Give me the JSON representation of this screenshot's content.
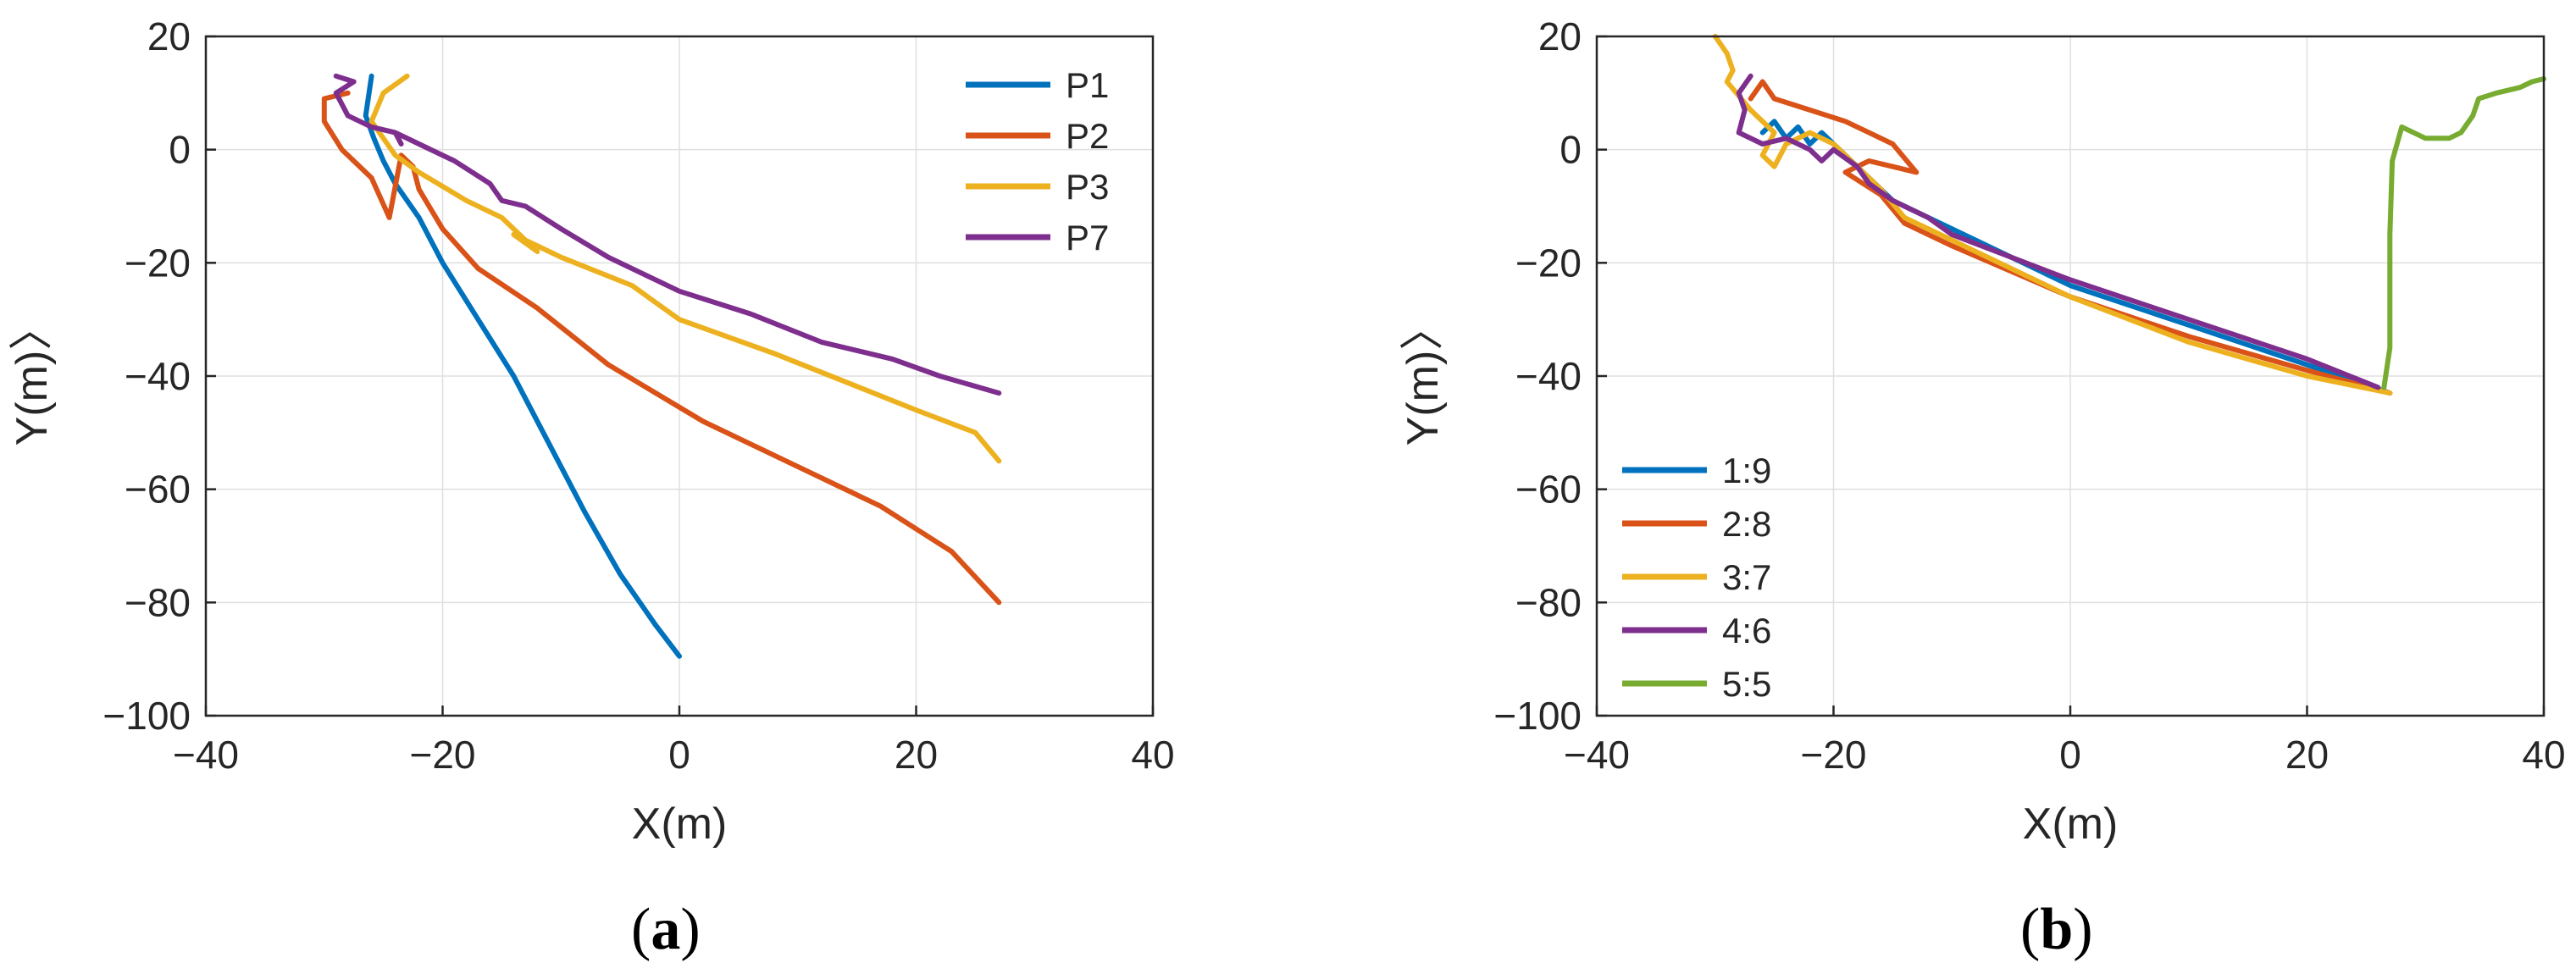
{
  "colors": {
    "blue": "#0072BD",
    "orange": "#D95319",
    "yellow": "#EDB120",
    "purple": "#7E2F8E",
    "green": "#77AC30"
  },
  "panels": {
    "a": {
      "open": "(",
      "letter": "a",
      "close": ")"
    },
    "b": {
      "open": "(",
      "letter": "b",
      "close": ")"
    }
  },
  "chart_data": [
    {
      "type": "line",
      "panel": "a",
      "xlabel": "X(m)",
      "ylabel": "Y(m)〉",
      "xlim": [
        -40,
        40
      ],
      "ylim": [
        -100,
        20
      ],
      "xticks": [
        -40,
        -20,
        0,
        20,
        40
      ],
      "yticks": [
        -100,
        -80,
        -60,
        -40,
        -20,
        0,
        20
      ],
      "xtick_labels": [
        "−40",
        "−20",
        "0",
        "20",
        "40"
      ],
      "ytick_labels": [
        "−100",
        "−80",
        "−60",
        "−40",
        "−20",
        "0",
        "20"
      ],
      "grid": true,
      "legend_position": "top-right",
      "series": [
        {
          "name": "P1",
          "color": "blue",
          "points": [
            [
              -26,
              13
            ],
            [
              -26.5,
              6
            ],
            [
              -25.8,
              2
            ],
            [
              -25,
              -2
            ],
            [
              -24,
              -6
            ],
            [
              -22,
              -12
            ],
            [
              -20,
              -20
            ],
            [
              -17,
              -30
            ],
            [
              -14,
              -40
            ],
            [
              -11,
              -52
            ],
            [
              -8,
              -64
            ],
            [
              -5,
              -75
            ],
            [
              -2,
              -84
            ],
            [
              0,
              -89.5
            ]
          ]
        },
        {
          "name": "P2",
          "color": "orange",
          "points": [
            [
              -28,
              10
            ],
            [
              -30,
              9
            ],
            [
              -30,
              5
            ],
            [
              -28.5,
              0
            ],
            [
              -26,
              -5
            ],
            [
              -24.5,
              -12
            ],
            [
              -23.5,
              -1
            ],
            [
              -22.5,
              -3
            ],
            [
              -22,
              -7
            ],
            [
              -20,
              -14
            ],
            [
              -17,
              -21
            ],
            [
              -12,
              -28
            ],
            [
              -6,
              -38
            ],
            [
              2,
              -48
            ],
            [
              10,
              -56
            ],
            [
              17,
              -63
            ],
            [
              23,
              -71
            ],
            [
              27,
              -80
            ]
          ]
        },
        {
          "name": "P3",
          "color": "yellow",
          "points": [
            [
              -23,
              13
            ],
            [
              -25,
              10
            ],
            [
              -26,
              5
            ],
            [
              -25,
              2
            ],
            [
              -24,
              -1
            ],
            [
              -22,
              -4
            ],
            [
              -18,
              -9
            ],
            [
              -15,
              -12
            ],
            [
              -12,
              -18
            ],
            [
              -14,
              -15
            ],
            [
              -10,
              -19
            ],
            [
              -4,
              -24
            ],
            [
              0,
              -30
            ],
            [
              8,
              -36
            ],
            [
              14,
              -41
            ],
            [
              20,
              -46
            ],
            [
              25,
              -50
            ],
            [
              27,
              -55
            ]
          ]
        },
        {
          "name": "P7",
          "color": "purple",
          "points": [
            [
              -29,
              13
            ],
            [
              -27.5,
              12
            ],
            [
              -29,
              10
            ],
            [
              -28,
              6
            ],
            [
              -26,
              4
            ],
            [
              -24,
              3
            ],
            [
              -23.5,
              1
            ],
            [
              -24,
              3
            ],
            [
              -22,
              1
            ],
            [
              -19,
              -2
            ],
            [
              -16,
              -6
            ],
            [
              -15,
              -9
            ],
            [
              -13,
              -10
            ],
            [
              -10,
              -14
            ],
            [
              -6,
              -19
            ],
            [
              0,
              -25
            ],
            [
              6,
              -29
            ],
            [
              12,
              -34
            ],
            [
              18,
              -37
            ],
            [
              22,
              -40
            ],
            [
              27,
              -43
            ]
          ]
        }
      ]
    },
    {
      "type": "line",
      "panel": "b",
      "xlabel": "X(m)",
      "ylabel": "Y(m)〉",
      "xlim": [
        -40,
        40
      ],
      "ylim": [
        -100,
        20
      ],
      "xticks": [
        -40,
        -20,
        0,
        20,
        40
      ],
      "yticks": [
        -100,
        -80,
        -60,
        -40,
        -20,
        0,
        20
      ],
      "xtick_labels": [
        "−40",
        "−20",
        "0",
        "20",
        "40"
      ],
      "ytick_labels": [
        "−100",
        "−80",
        "−60",
        "−40",
        "−20",
        "0",
        "20"
      ],
      "grid": true,
      "legend_position": "bottom-left",
      "series": [
        {
          "name": "1:9",
          "color": "blue",
          "points": [
            [
              -26,
              3
            ],
            [
              -25,
              5
            ],
            [
              -24,
              2
            ],
            [
              -23,
              4
            ],
            [
              -22,
              1
            ],
            [
              -21,
              3
            ],
            [
              -19,
              -1
            ],
            [
              -17,
              -5
            ],
            [
              -15,
              -9
            ],
            [
              -10,
              -14
            ],
            [
              0,
              -24
            ],
            [
              10,
              -31
            ],
            [
              20,
              -38
            ],
            [
              27,
              -43
            ]
          ]
        },
        {
          "name": "2:8",
          "color": "orange",
          "points": [
            [
              -27,
              9
            ],
            [
              -26,
              12
            ],
            [
              -25,
              9
            ],
            [
              -22,
              7
            ],
            [
              -19,
              5
            ],
            [
              -17,
              3
            ],
            [
              -15,
              1
            ],
            [
              -13,
              -4
            ],
            [
              -15,
              -3
            ],
            [
              -17,
              -2
            ],
            [
              -19,
              -4
            ],
            [
              -16,
              -8
            ],
            [
              -14,
              -13
            ],
            [
              -10,
              -17
            ],
            [
              0,
              -26
            ],
            [
              10,
              -33
            ],
            [
              20,
              -39
            ],
            [
              27,
              -43
            ]
          ]
        },
        {
          "name": "3:7",
          "color": "yellow",
          "points": [
            [
              -30,
              20
            ],
            [
              -29,
              17
            ],
            [
              -28.5,
              14
            ],
            [
              -29,
              12
            ],
            [
              -27,
              7
            ],
            [
              -25,
              3
            ],
            [
              -26,
              -1
            ],
            [
              -25,
              -3
            ],
            [
              -24,
              1
            ],
            [
              -22,
              3
            ],
            [
              -20,
              1
            ],
            [
              -18,
              -3
            ],
            [
              -16,
              -7
            ],
            [
              -14,
              -12
            ],
            [
              -10,
              -16
            ],
            [
              0,
              -26
            ],
            [
              10,
              -34
            ],
            [
              20,
              -40
            ],
            [
              27,
              -43
            ]
          ]
        },
        {
          "name": "4:6",
          "color": "purple",
          "points": [
            [
              -27,
              13
            ],
            [
              -28,
              10
            ],
            [
              -27.5,
              7
            ],
            [
              -28,
              3
            ],
            [
              -26,
              1
            ],
            [
              -24,
              2
            ],
            [
              -22,
              0
            ],
            [
              -21,
              -2
            ],
            [
              -20,
              0
            ],
            [
              -18,
              -3
            ],
            [
              -17,
              -6
            ],
            [
              -15,
              -9
            ],
            [
              -12,
              -12
            ],
            [
              -10,
              -15
            ],
            [
              0,
              -23
            ],
            [
              10,
              -30
            ],
            [
              20,
              -37
            ],
            [
              26,
              -42
            ]
          ]
        },
        {
          "name": "5:5",
          "color": "green",
          "points": [
            [
              26.5,
              -42
            ],
            [
              27,
              -35
            ],
            [
              27,
              -15
            ],
            [
              27.2,
              -2
            ],
            [
              28,
              4
            ],
            [
              29,
              3
            ],
            [
              30,
              2
            ],
            [
              32,
              2
            ],
            [
              33,
              3
            ],
            [
              34,
              6
            ],
            [
              34.5,
              9
            ],
            [
              36,
              10
            ],
            [
              38,
              11
            ],
            [
              39,
              12
            ],
            [
              40,
              12.5
            ]
          ]
        }
      ]
    }
  ]
}
